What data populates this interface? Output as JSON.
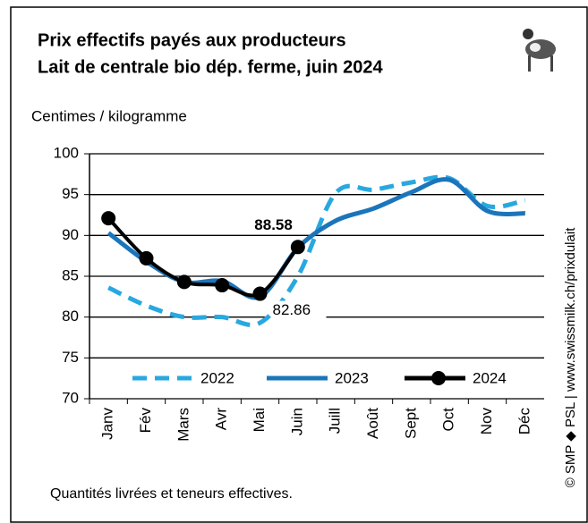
{
  "header": {
    "title_line1": "Prix effectifs payés aux producteurs",
    "title_line2": "Lait de centrale bio dép. ferme, juin 2024",
    "unit": "Centimes / kilogramme",
    "footnote": "Quantités livrées et teneurs effectives.",
    "credit": "© SMP ◆ PSL | www.swissmilk.ch/prixdulait"
  },
  "chart_data": {
    "type": "line",
    "categories": [
      "Janv",
      "Fév",
      "Mars",
      "Avr",
      "Mai",
      "Juin",
      "Juill",
      "Août",
      "Sept",
      "Oct",
      "Nov",
      "Déc"
    ],
    "series": [
      {
        "name": "2022",
        "color": "#29a8e0",
        "line_style": "dashed",
        "values": [
          83.6,
          81.4,
          80,
          80,
          79.3,
          85,
          95.2,
          95.6,
          96.5,
          97,
          93.6,
          94.3
        ]
      },
      {
        "name": "2023",
        "color": "#1b75bb",
        "line_style": "solid",
        "values": [
          90.3,
          86.8,
          84.3,
          84.4,
          82.5,
          88.5,
          91.8,
          93.3,
          95.3,
          96.8,
          93,
          92.7
        ]
      },
      {
        "name": "2024",
        "color": "#000000",
        "line_style": "solid",
        "markers": true,
        "values": [
          92.1,
          87.2,
          84.3,
          83.9,
          82.86,
          88.58,
          null,
          null,
          null,
          null,
          null,
          null
        ]
      }
    ],
    "ylim": [
      70,
      100
    ],
    "yticks": [
      70,
      75,
      80,
      85,
      90,
      95,
      100
    ],
    "grid": true,
    "legend": "bottom"
  }
}
